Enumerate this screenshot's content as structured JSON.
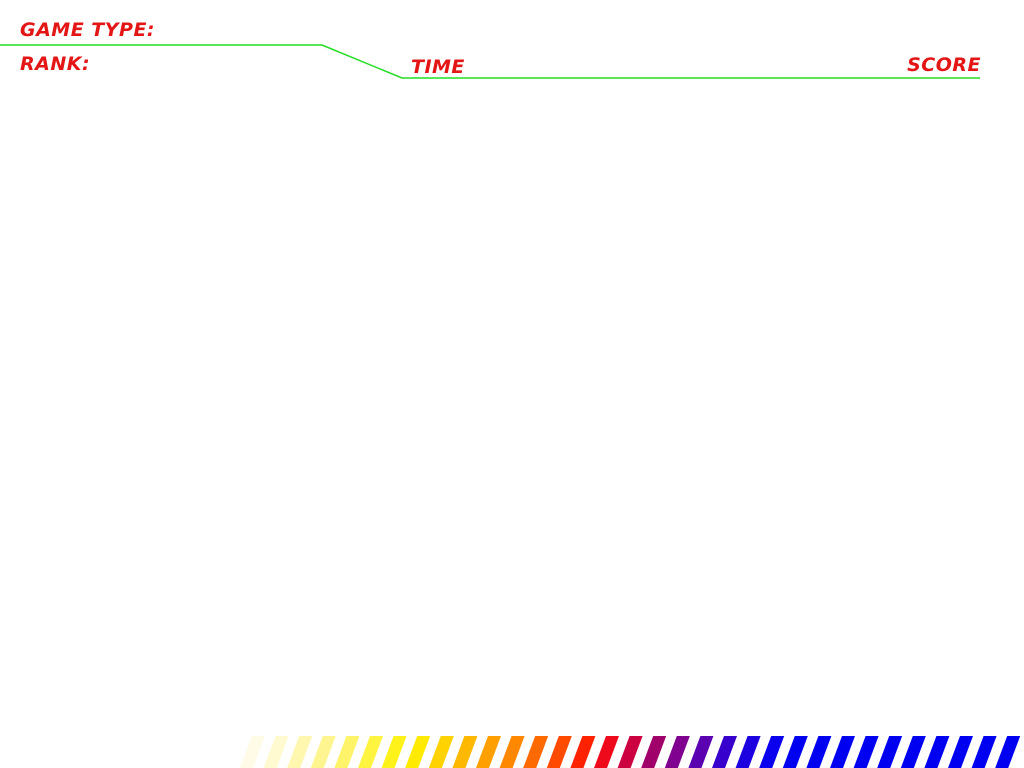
{
  "hud": {
    "game_type_label": "GAME TYPE:",
    "rank_label": "RANK:",
    "time_label": "TIME",
    "score_label": "SCORE"
  },
  "colors": {
    "label": "#e31515",
    "divider": "#22dd22",
    "stripes": [
      "#fffbe6",
      "#fffad0",
      "#fff7b0",
      "#fff590",
      "#fff36a",
      "#fff440",
      "#fff21a",
      "#ffea00",
      "#ffd200",
      "#ffb800",
      "#ffa000",
      "#ff8800",
      "#ff6a00",
      "#ff4a00",
      "#ff2200",
      "#ee0a1a",
      "#cc0040",
      "#a0006a",
      "#800090",
      "#5a00b0",
      "#3800cc",
      "#1c00e0",
      "#0a00ee",
      "#0000f0",
      "#0000f0",
      "#0000f0",
      "#0000f0",
      "#0000f0",
      "#0000f0",
      "#0000f0",
      "#0000f0",
      "#0000f0",
      "#0000f0"
    ]
  }
}
